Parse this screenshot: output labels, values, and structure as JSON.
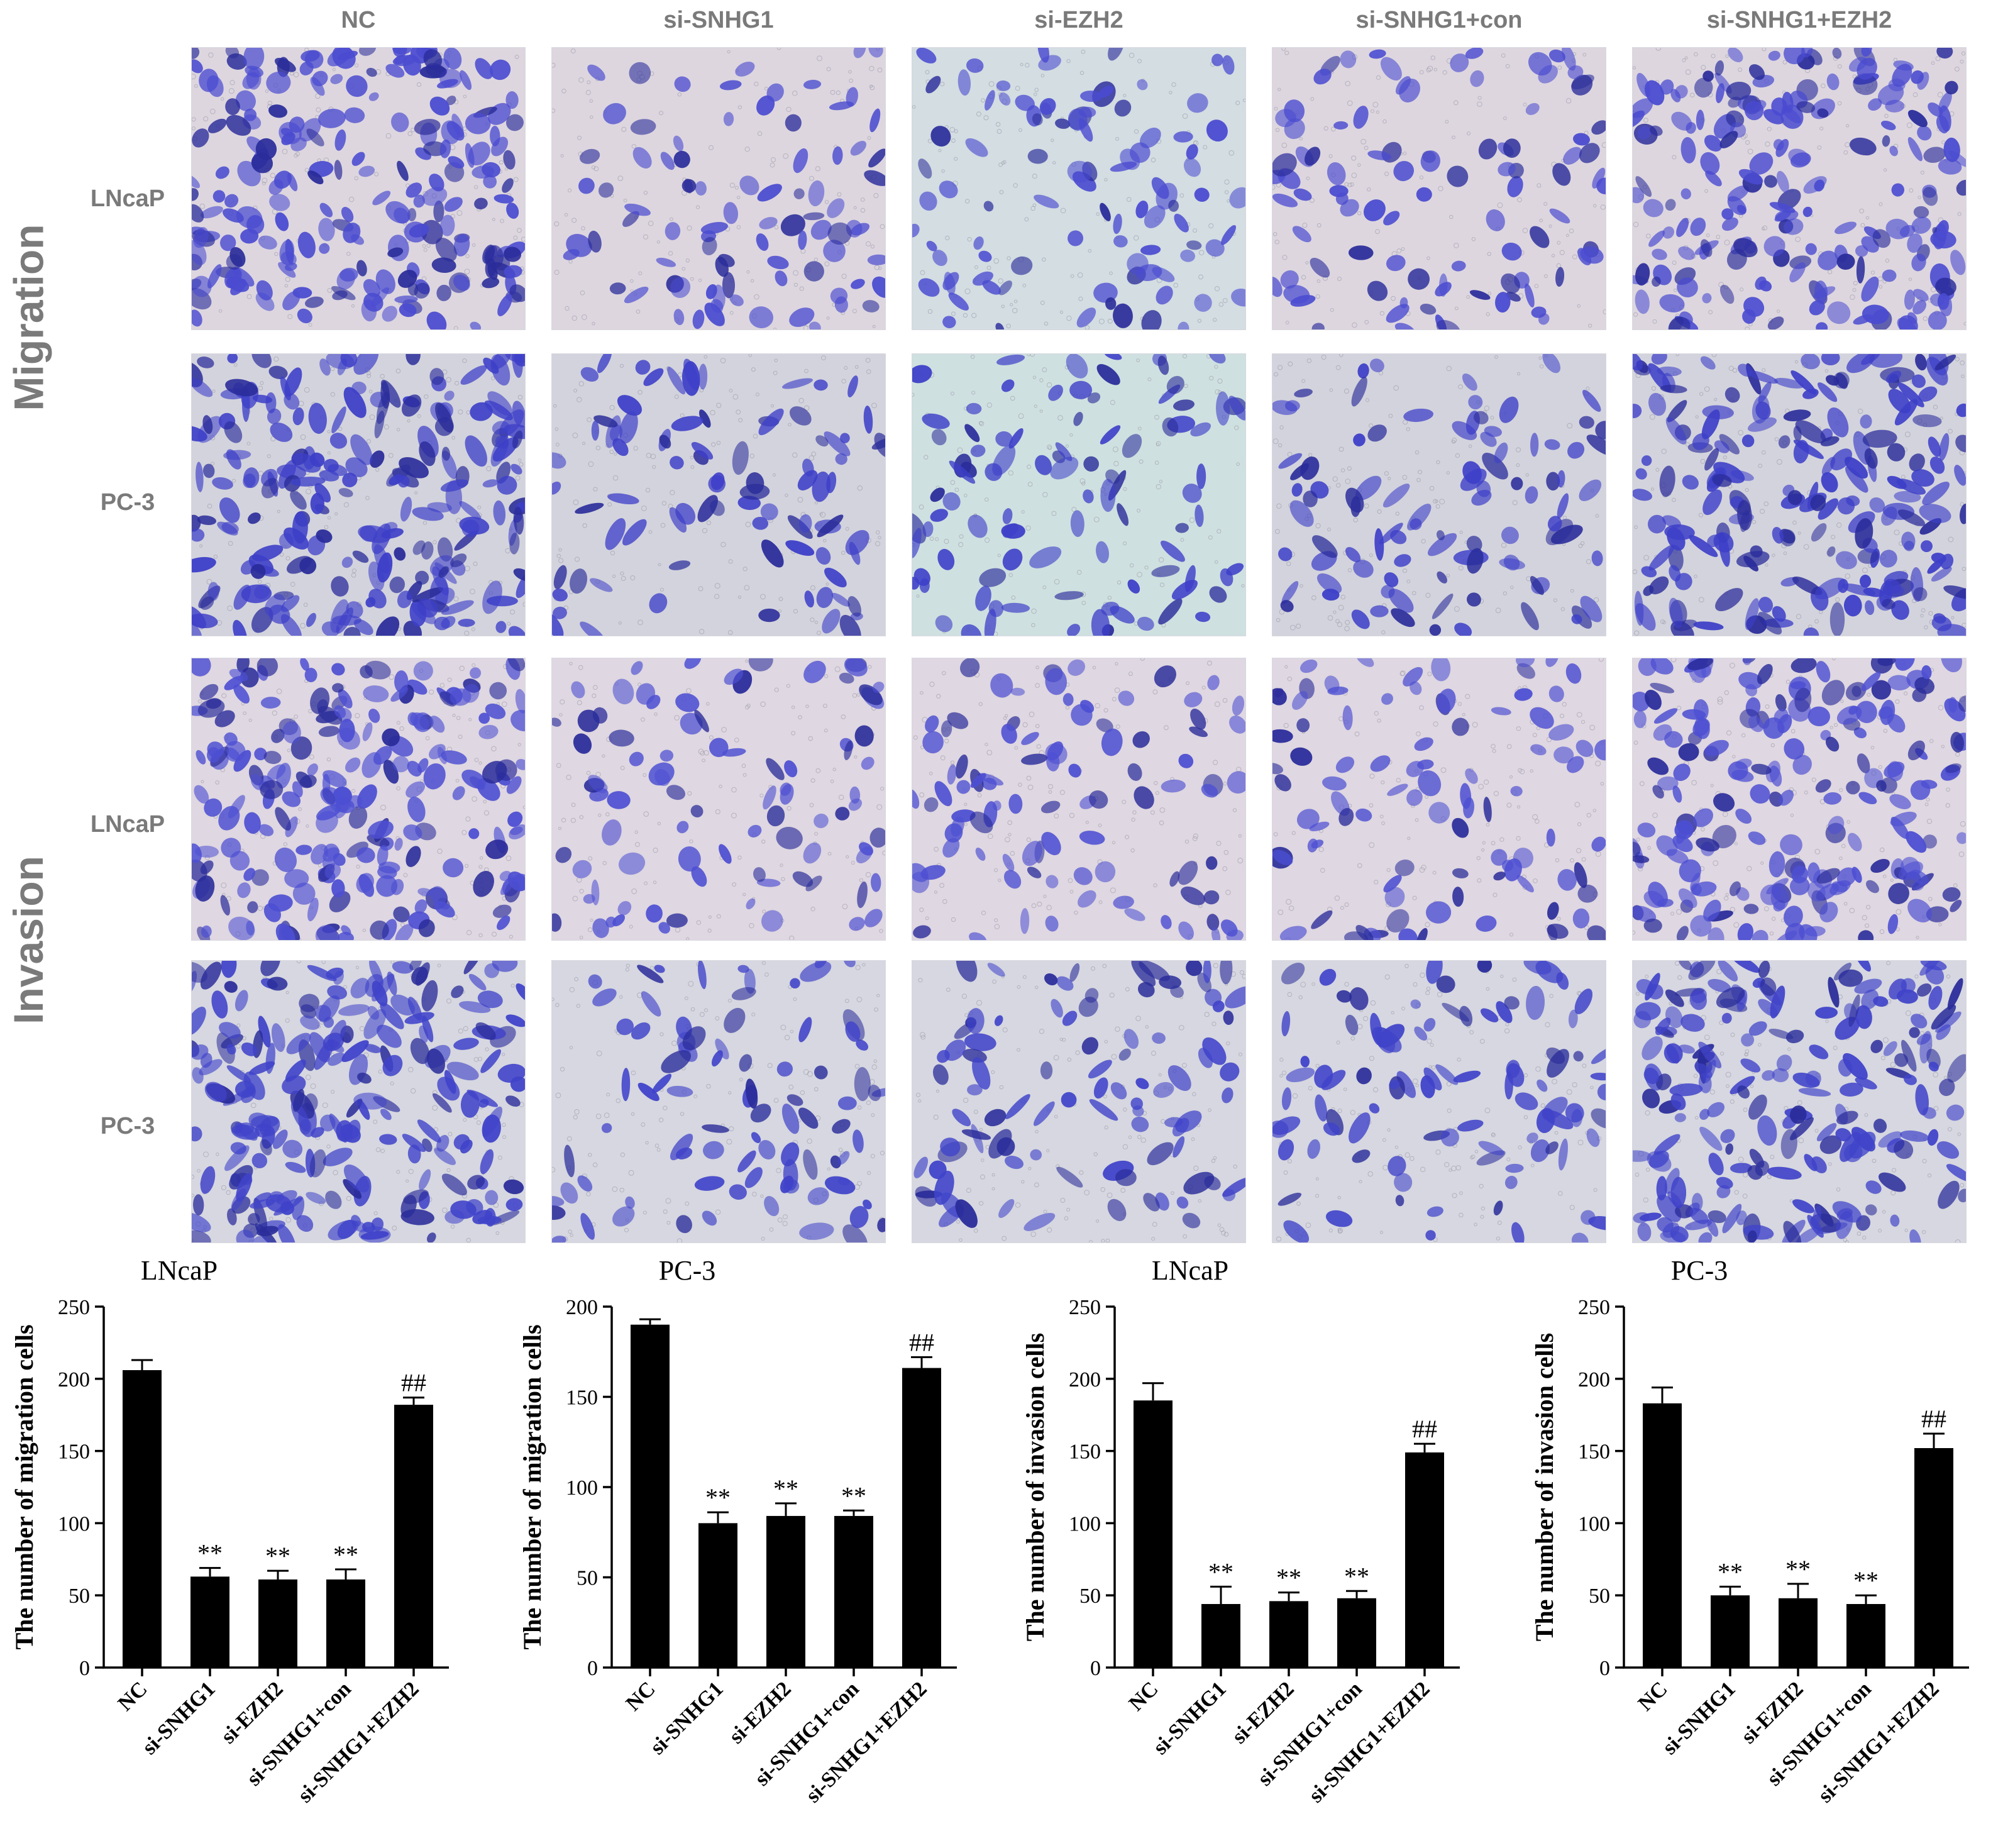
{
  "columns": [
    "NC",
    "si-SNHG1",
    "si-EZH2",
    "si-SNHG1+con",
    "si-SNHG1+EZH2"
  ],
  "sections": [
    "Migration",
    "Invasion"
  ],
  "rows": [
    "LNcaP",
    "PC-3",
    "LNcaP",
    "PC-3"
  ],
  "micrographs": [
    {
      "row": "LNcaP",
      "section": "Migration",
      "background": "#ddd6df",
      "cell_color": "#4a4bd0"
    },
    {
      "row": "PC-3",
      "section": "Migration",
      "background": "#d3d3dd",
      "cell_color": "#3d3fc8"
    },
    {
      "row": "LNcaP",
      "section": "Invasion",
      "background": "#dfd7e1",
      "cell_color": "#4d4fd2"
    },
    {
      "row": "PC-3",
      "section": "Invasion",
      "background": "#d6d7e0",
      "cell_color": "#4043c9"
    }
  ],
  "colors": {
    "label_gray": "#7a7a7a",
    "bar": "#000000",
    "cell_stain": "#4a4bd0"
  },
  "chart_data": [
    {
      "type": "bar",
      "title": "LNcaP",
      "ylabel": "The number of migration cells",
      "categories": [
        "NC",
        "si-SNHG1",
        "si-EZH2",
        "si-SNHG1+con",
        "si-SNHG1+EZH2"
      ],
      "values": [
        206,
        63,
        61,
        61,
        182
      ],
      "errors": [
        7,
        6,
        6,
        7,
        5
      ],
      "annotations": [
        "",
        "**",
        "**",
        "**",
        "##"
      ],
      "ylim": [
        0,
        250
      ],
      "yticks": [
        0,
        50,
        100,
        150,
        200,
        250
      ]
    },
    {
      "type": "bar",
      "title": "PC-3",
      "ylabel": "The number of migration cells",
      "categories": [
        "NC",
        "si-SNHG1",
        "si-EZH2",
        "si-SNHG1+con",
        "si-SNHG1+EZH2"
      ],
      "values": [
        190,
        80,
        84,
        84,
        166
      ],
      "errors": [
        3,
        6,
        7,
        3,
        6
      ],
      "annotations": [
        "",
        "**",
        "**",
        "**",
        "##"
      ],
      "ylim": [
        0,
        200
      ],
      "yticks": [
        0,
        50,
        100,
        150,
        200
      ]
    },
    {
      "type": "bar",
      "title": "LNcaP",
      "ylabel": "The number of invasion cells",
      "categories": [
        "NC",
        "si-SNHG1",
        "si-EZH2",
        "si-SNHG1+con",
        "si-SNHG1+EZH2"
      ],
      "values": [
        185,
        44,
        46,
        48,
        149
      ],
      "errors": [
        12,
        12,
        6,
        5,
        6
      ],
      "annotations": [
        "",
        "**",
        "**",
        "**",
        "##"
      ],
      "ylim": [
        0,
        250
      ],
      "yticks": [
        0,
        50,
        100,
        150,
        200,
        250
      ]
    },
    {
      "type": "bar",
      "title": "PC-3",
      "ylabel": "The number of invasion cells",
      "categories": [
        "NC",
        "si-SNHG1",
        "si-EZH2",
        "si-SNHG1+con",
        "si-SNHG1+EZH2"
      ],
      "values": [
        183,
        50,
        48,
        44,
        152
      ],
      "errors": [
        11,
        6,
        10,
        6,
        10
      ],
      "annotations": [
        "",
        "**",
        "**",
        "**",
        "##"
      ],
      "ylim": [
        0,
        250
      ],
      "yticks": [
        0,
        50,
        100,
        150,
        200,
        250
      ]
    }
  ]
}
